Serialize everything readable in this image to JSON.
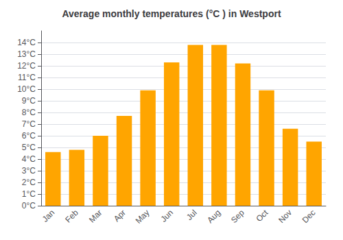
{
  "chart_data": {
    "type": "bar",
    "title": "Average monthly temperatures (°C ) in Westport",
    "categories": [
      "Jan",
      "Feb",
      "Mar",
      "Apr",
      "May",
      "Jun",
      "Jul",
      "Aug",
      "Sep",
      "Oct",
      "Nov",
      "Dec"
    ],
    "values": [
      4.6,
      4.8,
      6.0,
      7.7,
      9.9,
      12.3,
      13.8,
      13.8,
      12.2,
      9.9,
      6.6,
      5.5
    ],
    "color": "#FFA500",
    "ylim": [
      0,
      15.0
    ],
    "yticks": [
      {
        "value": 0,
        "label": "0°C"
      },
      {
        "value": 1,
        "label": "1°C"
      },
      {
        "value": 2,
        "label": "2°C"
      },
      {
        "value": 3,
        "label": "3°C"
      },
      {
        "value": 4,
        "label": "4°C"
      },
      {
        "value": 5,
        "label": "5°C"
      },
      {
        "value": 6,
        "label": "6°C"
      },
      {
        "value": 7,
        "label": "7°C"
      },
      {
        "value": 8,
        "label": "8°C"
      },
      {
        "value": 9,
        "label": "9°C"
      },
      {
        "value": 10,
        "label": "10°C"
      },
      {
        "value": 11,
        "label": "11°C"
      },
      {
        "value": 12,
        "label": "12°C"
      },
      {
        "value": 13,
        "label": "13°C"
      },
      {
        "value": 14,
        "label": "14°C"
      }
    ],
    "grid": true
  }
}
